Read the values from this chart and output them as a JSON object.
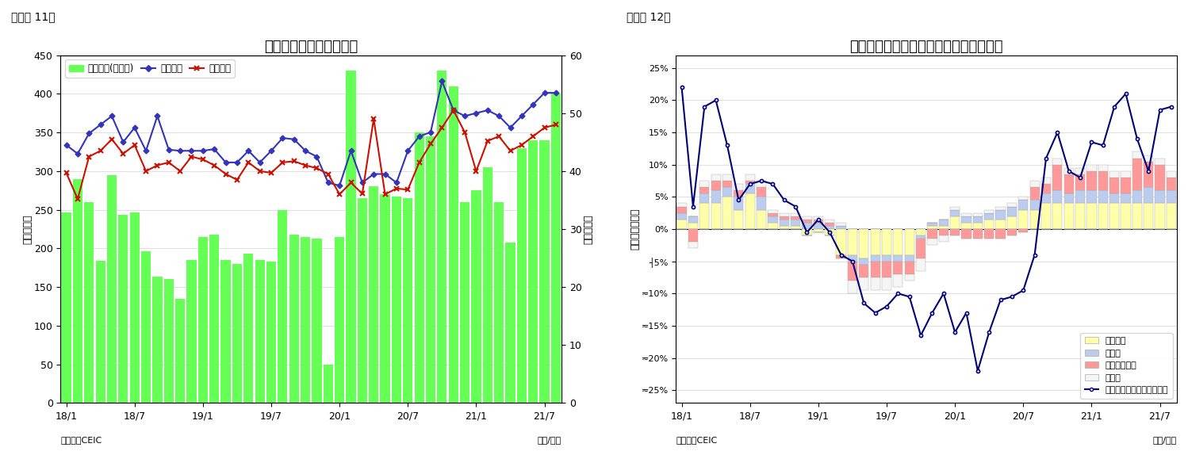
{
  "chart1": {
    "title": "シンガポール　貳易収支",
    "ylabel_left": "（億ドル）",
    "ylabel_right": "（億ドル）",
    "xlabel": "（年/月）",
    "source": "（資料）CEIC",
    "label": "（図表 11）",
    "xtick_labels": [
      "18/1",
      "18/7",
      "19/1",
      "19/7",
      "20/1",
      "20/7",
      "21/1",
      "21/7"
    ],
    "bar_color": "#66FF55",
    "line1_color": "#3333BB",
    "line2_color": "#CC1100",
    "ylim_left": [
      0,
      450
    ],
    "ylim_right": [
      0,
      60
    ],
    "trade_balance": [
      247,
      290,
      260,
      184,
      295,
      243,
      247,
      196,
      163,
      160,
      135,
      185,
      215,
      218,
      185,
      180,
      193,
      185,
      183,
      250,
      218,
      215,
      213,
      50,
      215,
      430,
      265,
      280,
      270,
      267,
      265,
      350,
      345,
      430,
      410,
      260,
      275,
      305,
      260,
      208,
      330,
      340,
      340,
      400
    ],
    "exports": [
      44.5,
      43.0,
      46.5,
      48.0,
      49.5,
      45.0,
      47.5,
      43.5,
      49.5,
      43.7,
      43.5,
      43.5,
      43.5,
      43.8,
      41.5,
      41.5,
      43.5,
      41.5,
      43.5,
      45.7,
      45.5,
      43.5,
      42.5,
      38.0,
      37.5,
      43.5,
      38.0,
      39.5,
      39.5,
      38.0,
      43.5,
      46.0,
      46.7,
      55.5,
      50.5,
      49.5,
      50.0,
      50.5,
      49.5,
      47.5,
      49.5,
      51.5,
      53.5,
      53.5
    ],
    "imports": [
      39.7,
      35.2,
      42.5,
      43.5,
      45.5,
      43.0,
      44.5,
      40.0,
      41.0,
      41.5,
      40.0,
      42.5,
      42.0,
      41.0,
      39.5,
      38.5,
      41.5,
      40.0,
      39.7,
      41.5,
      41.7,
      41.0,
      40.5,
      39.5,
      36.0,
      38.0,
      36.1,
      49.0,
      36.0,
      37.0,
      36.8,
      41.5,
      44.7,
      47.5,
      50.5,
      46.7,
      40.0,
      45.2,
      46.0,
      43.5,
      44.5,
      46.0,
      47.5,
      48.0
    ],
    "legend_bar": "貳易収支(右目盛)",
    "legend_line1": "総輸出額",
    "legend_line2": "総輸入額"
  },
  "chart2": {
    "title": "シンガポール　輸出の伸び率（品目別）",
    "ylabel_left": "（前年同期比）",
    "xlabel": "（年/月）",
    "source": "（資料）CEIC",
    "label": "（図表 12）",
    "xtick_labels": [
      "18/1",
      "18/7",
      "19/1",
      "19/7",
      "20/1",
      "20/7",
      "21/1",
      "21/7"
    ],
    "ylim": [
      -0.27,
      0.27
    ],
    "yticks": [
      0.25,
      0.2,
      0.15,
      0.1,
      0.05,
      0.0,
      -0.05,
      -0.1,
      -0.15,
      -0.2,
      -0.25
    ],
    "ytick_labels": [
      "25%",
      "20%",
      "15%",
      "10%",
      "5%",
      "0%",
      "┤5%",
      "≂10%",
      "≂15%",
      "≂20%",
      "≂25%"
    ],
    "color_electronics": "#FFFFAA",
    "color_pharma": "#BBCCEE",
    "color_petrochem": "#FF9999",
    "color_other": "#F5F5F5",
    "color_line": "#000077",
    "electronics": [
      0.015,
      0.01,
      0.04,
      0.04,
      0.05,
      0.03,
      0.055,
      0.03,
      0.01,
      0.005,
      0.005,
      -0.01,
      -0.005,
      -0.01,
      -0.04,
      -0.04,
      -0.045,
      -0.04,
      -0.04,
      -0.04,
      -0.04,
      -0.01,
      0.005,
      0.005,
      0.02,
      0.01,
      0.01,
      0.015,
      0.015,
      0.02,
      0.03,
      0.03,
      0.04,
      0.04,
      0.04,
      0.04,
      0.04,
      0.04,
      0.04,
      0.04,
      0.04,
      0.04,
      0.04,
      0.04
    ],
    "pharma": [
      0.01,
      0.01,
      0.015,
      0.02,
      0.015,
      0.02,
      0.015,
      0.02,
      0.01,
      0.01,
      0.01,
      0.01,
      0.01,
      0.005,
      0.005,
      -0.01,
      -0.01,
      -0.01,
      -0.01,
      -0.01,
      -0.01,
      -0.005,
      0.005,
      0.01,
      0.01,
      0.01,
      0.01,
      0.01,
      0.015,
      0.015,
      0.015,
      0.015,
      0.015,
      0.02,
      0.015,
      0.02,
      0.02,
      0.02,
      0.015,
      0.015,
      0.02,
      0.025,
      0.02,
      0.02
    ],
    "petrochem": [
      0.01,
      -0.02,
      0.01,
      0.015,
      0.01,
      0.01,
      0.005,
      0.015,
      0.005,
      0.005,
      0.005,
      0.005,
      0.005,
      0.005,
      -0.005,
      -0.03,
      -0.02,
      -0.025,
      -0.025,
      -0.02,
      -0.02,
      -0.03,
      -0.015,
      -0.01,
      -0.01,
      -0.015,
      -0.015,
      -0.015,
      -0.015,
      -0.01,
      -0.005,
      0.02,
      0.015,
      0.04,
      0.03,
      0.025,
      0.03,
      0.03,
      0.025,
      0.025,
      0.05,
      0.04,
      0.04,
      0.02
    ],
    "other": [
      0.005,
      -0.01,
      0.01,
      0.01,
      0.01,
      0.01,
      0.01,
      0.01,
      0.005,
      0.005,
      0.005,
      0.005,
      0.005,
      0.005,
      0.005,
      -0.02,
      -0.02,
      -0.02,
      -0.02,
      -0.02,
      -0.01,
      -0.02,
      -0.01,
      -0.01,
      0.005,
      0.005,
      0.005,
      0.005,
      0.005,
      0.005,
      0.005,
      0.01,
      0.01,
      0.01,
      0.01,
      0.01,
      0.01,
      0.01,
      0.01,
      0.01,
      0.01,
      0.01,
      0.01,
      0.01
    ],
    "non_oil": [
      0.22,
      0.035,
      0.19,
      0.2,
      0.13,
      0.045,
      0.07,
      0.075,
      0.07,
      0.045,
      0.035,
      -0.005,
      0.015,
      -0.005,
      -0.04,
      -0.05,
      -0.115,
      -0.13,
      -0.12,
      -0.1,
      -0.105,
      -0.165,
      -0.13,
      -0.1,
      -0.16,
      -0.13,
      -0.22,
      -0.16,
      -0.11,
      -0.105,
      -0.095,
      -0.04,
      0.11,
      0.15,
      0.09,
      0.08,
      0.135,
      0.13,
      0.19,
      0.21,
      0.14,
      0.09,
      0.185,
      0.19
    ],
    "legend_electronics": "電子製品",
    "legend_pharma": "医薬品",
    "legend_petrochem": "石油化学製品",
    "legend_other": "その他",
    "legend_line": "非石油輸出（再輸出除く）"
  }
}
